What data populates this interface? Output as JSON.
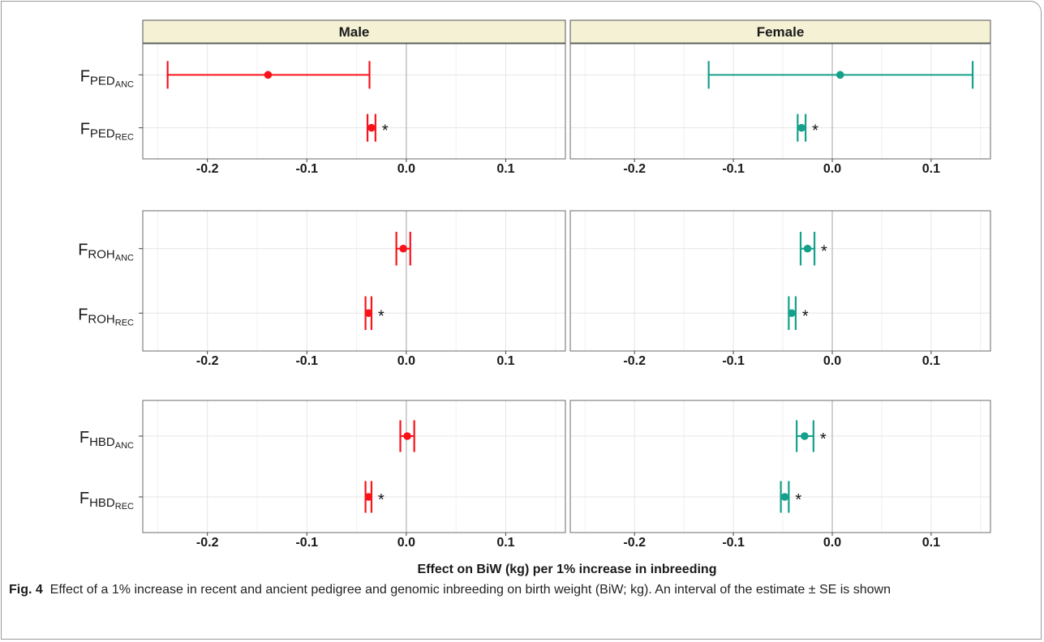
{
  "caption": {
    "label": "Fig. 4",
    "text": "Effect of a 1% increase in recent and ancient pedigree and genomic inbreeding on birth weight (BiW; kg). An interval of the estimate ± SE is shown"
  },
  "chart_data": {
    "type": "scatter",
    "subtype": "forest plot (point estimate ± SE)",
    "xlabel": "Effect on BiW (kg) per 1% increase in inbreeding",
    "xlim": [
      -0.265,
      0.16
    ],
    "xticks": [
      "-0.2",
      "-0.1",
      "0.0",
      "0.1"
    ],
    "xtick_values": [
      -0.2,
      -0.1,
      0.0,
      0.1
    ],
    "reference_line": 0,
    "grid": true,
    "facets": [
      "Male",
      "Female"
    ],
    "facet_colors": {
      "Male": "#f8131b",
      "Female": "#14a08a"
    },
    "strip_background": "#f4f1d4",
    "significance_marker": "*",
    "panels": [
      {
        "group": "PED",
        "rows": [
          {
            "label_base": "F",
            "label_sub": "PED",
            "label_subsub": "ANC",
            "Male": {
              "estimate": -0.139,
              "lower": -0.24,
              "upper": -0.037,
              "significant": false
            },
            "Female": {
              "estimate": 0.008,
              "lower": -0.125,
              "upper": 0.142,
              "significant": false
            }
          },
          {
            "label_base": "F",
            "label_sub": "PED",
            "label_subsub": "REC",
            "Male": {
              "estimate": -0.035,
              "lower": -0.039,
              "upper": -0.031,
              "significant": true
            },
            "Female": {
              "estimate": -0.031,
              "lower": -0.035,
              "upper": -0.027,
              "significant": true
            }
          }
        ]
      },
      {
        "group": "ROH",
        "rows": [
          {
            "label_base": "F",
            "label_sub": "ROH",
            "label_subsub": "ANC",
            "Male": {
              "estimate": -0.003,
              "lower": -0.01,
              "upper": 0.004,
              "significant": false
            },
            "Female": {
              "estimate": -0.025,
              "lower": -0.032,
              "upper": -0.018,
              "significant": true
            }
          },
          {
            "label_base": "F",
            "label_sub": "ROH",
            "label_subsub": "REC",
            "Male": {
              "estimate": -0.038,
              "lower": -0.041,
              "upper": -0.035,
              "significant": true
            },
            "Female": {
              "estimate": -0.041,
              "lower": -0.044,
              "upper": -0.037,
              "significant": true
            }
          }
        ]
      },
      {
        "group": "HBD",
        "rows": [
          {
            "label_base": "F",
            "label_sub": "HBD",
            "label_subsub": "ANC",
            "Male": {
              "estimate": 0.001,
              "lower": -0.006,
              "upper": 0.008,
              "significant": false
            },
            "Female": {
              "estimate": -0.028,
              "lower": -0.036,
              "upper": -0.019,
              "significant": true
            }
          },
          {
            "label_base": "F",
            "label_sub": "HBD",
            "label_subsub": "REC",
            "Male": {
              "estimate": -0.038,
              "lower": -0.041,
              "upper": -0.035,
              "significant": true
            },
            "Female": {
              "estimate": -0.048,
              "lower": -0.052,
              "upper": -0.044,
              "significant": true
            }
          }
        ]
      }
    ]
  }
}
